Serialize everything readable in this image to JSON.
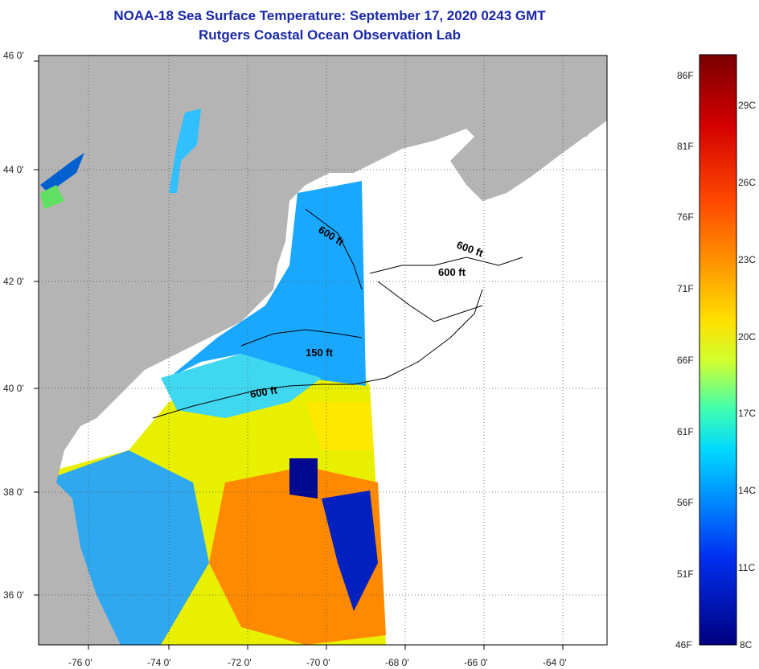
{
  "header": {
    "title_line1": "NOAA-18 Sea Surface Temperature:  September 17, 2020 0243 GMT",
    "title_line2": "Rutgers Coastal Ocean Observation Lab"
  },
  "map": {
    "lat_labels": [
      "46 0'",
      "44 0'",
      "42 0'",
      "40 0'",
      "38 0'",
      "36 0'"
    ],
    "lon_labels": [
      "-76 0'",
      "-74 0'",
      "-72 0'",
      "-70 0'",
      "-68 0'",
      "-66 0'",
      "-64 0'"
    ],
    "depth_labels": [
      "600 ft",
      "600 ft",
      "600 ft",
      "150 ft",
      "600 ft"
    ],
    "colors": {
      "land": "#b4b4b4",
      "no_data": "#ffffff"
    }
  },
  "colorbar": {
    "fahrenheit_labels": [
      "86F",
      "81F",
      "76F",
      "71F",
      "66F",
      "61F",
      "56F",
      "51F",
      "46F"
    ],
    "celsius_labels": [
      "29C",
      "26C",
      "23C",
      "20C",
      "17C",
      "14C",
      "11C",
      "8C"
    ],
    "colors": [
      "#7a0000",
      "#d40000",
      "#ff4a00",
      "#ff9a00",
      "#ffd000",
      "#f0ff20",
      "#9aff40",
      "#20ffd0",
      "#00c8ff",
      "#0070ff",
      "#0020e0",
      "#000080"
    ]
  }
}
